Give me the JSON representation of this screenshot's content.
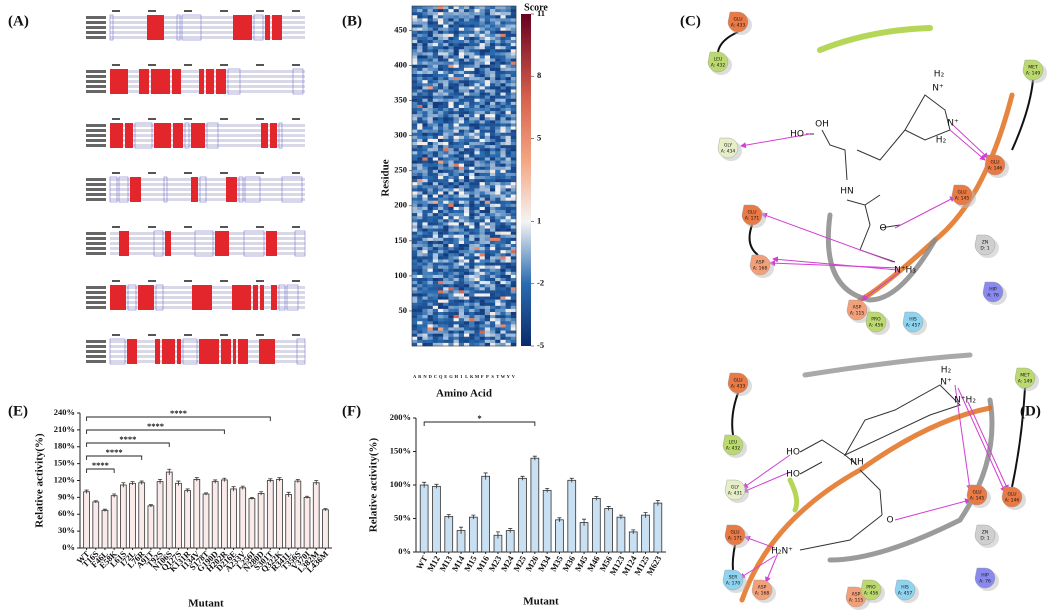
{
  "panel_labels": [
    "(A)",
    "(B)",
    "(C)",
    "(D)",
    "(E)",
    "(F)"
  ],
  "chart_data": [
    {
      "type": "heatmap",
      "colorbar_title": "Score",
      "x_label": "Amino Acid",
      "y_label": "Residue",
      "categories": [
        "A",
        "R",
        "N",
        "D",
        "C",
        "Q",
        "E",
        "G",
        "H",
        "I",
        "L",
        "K",
        "M",
        "F",
        "P",
        "S",
        "T",
        "W",
        "Y",
        "V"
      ],
      "ylim": [
        0,
        485
      ],
      "yticks": [
        50,
        100,
        150,
        200,
        250,
        300,
        350,
        400,
        450
      ],
      "clim": [
        -5,
        11
      ],
      "cticks": [
        -5,
        -2,
        1,
        5,
        8,
        11
      ]
    },
    {
      "type": "bar",
      "x_label": "Mutant",
      "y_label": "Relative activity(%)",
      "color": "#fbeaea",
      "categories": [
        "WT",
        "T16S",
        "F46L",
        "E58K",
        "L61S",
        "I72L",
        "L76R",
        "A91T",
        "T92S",
        "N106S",
        "Q127S",
        "K131R",
        "I134V",
        "S178T",
        "G190D",
        "H202R",
        "D216E",
        "A233V",
        "L256I",
        "N280D",
        "S301T",
        "Q322K",
        "R341L",
        "T356S",
        "V370I",
        "L382M",
        "L436M"
      ],
      "values": [
        100,
        82,
        67,
        93,
        112,
        115,
        116,
        75,
        118,
        135,
        115,
        102,
        122,
        96,
        118,
        121,
        105,
        107,
        88,
        97,
        120,
        122,
        95,
        119,
        90,
        116,
        68
      ],
      "errors": [
        3,
        2,
        2,
        3,
        4,
        3,
        3,
        2,
        4,
        5,
        4,
        3,
        3,
        2,
        3,
        3,
        4,
        3,
        2,
        3,
        3,
        3,
        4,
        3,
        2,
        4,
        2
      ],
      "ylim": [
        0,
        240
      ],
      "yticks": [
        {
          "value": 0,
          "label": "0%"
        },
        {
          "value": 30,
          "label": "30%"
        },
        {
          "value": 60,
          "label": "60%"
        },
        {
          "value": 90,
          "label": "90%"
        },
        {
          "value": 120,
          "label": "120%"
        },
        {
          "value": 150,
          "label": "150%"
        },
        {
          "value": 180,
          "label": "180%"
        },
        {
          "value": 210,
          "label": "210%"
        },
        {
          "value": 240,
          "label": "240%"
        }
      ],
      "significance": [
        {
          "from": 0,
          "to": 3,
          "label": "****"
        },
        {
          "from": 0,
          "to": 6,
          "label": "****"
        },
        {
          "from": 0,
          "to": 9,
          "label": "****"
        },
        {
          "from": 0,
          "to": 15,
          "label": "****"
        },
        {
          "from": 0,
          "to": 20,
          "label": "****"
        }
      ]
    },
    {
      "type": "bar",
      "x_label": "Mutant",
      "y_label": "Relative activity(%)",
      "color": "#c9dff2",
      "categories": [
        "WT",
        "M12",
        "M13",
        "M14",
        "M15",
        "M16",
        "M23",
        "M24",
        "M25",
        "M26",
        "M34",
        "M35",
        "M36",
        "M45",
        "M46",
        "M56",
        "M123",
        "M124",
        "M125",
        "M623"
      ],
      "values": [
        100,
        98,
        53,
        32,
        52,
        113,
        25,
        32,
        110,
        140,
        92,
        48,
        107,
        44,
        80,
        65,
        52,
        30,
        55,
        73
      ],
      "errors": [
        4,
        3,
        3,
        5,
        3,
        5,
        5,
        3,
        3,
        3,
        3,
        3,
        3,
        5,
        3,
        3,
        3,
        3,
        4,
        4
      ],
      "ylim": [
        0,
        200
      ],
      "yticks": [
        {
          "value": 0,
          "label": "0%"
        },
        {
          "value": 50,
          "label": "50%"
        },
        {
          "value": 100,
          "label": "100%"
        },
        {
          "value": 150,
          "label": "150%"
        },
        {
          "value": 200,
          "label": "200%"
        }
      ],
      "significance": [
        {
          "from": 0,
          "to": 9,
          "label": "*"
        }
      ]
    }
  ],
  "diagrams": [
    {
      "nodes": [
        {
          "residue": "GLU",
          "id": "A: 433"
        },
        {
          "residue": "LEU",
          "id": "A: 432"
        },
        {
          "residue": "GLY",
          "id": "A: 434"
        },
        {
          "residue": "MET",
          "id": "A: 149"
        },
        {
          "residue": "GLU",
          "id": "A: 146"
        },
        {
          "residue": "GLU",
          "id": "A: 145"
        },
        {
          "residue": "GLU",
          "id": "A: 171"
        },
        {
          "residue": "ASP",
          "id": "A: 168"
        },
        {
          "residue": "ZN",
          "id": "D: 1"
        },
        {
          "residue": "HIP",
          "id": "A: 76"
        },
        {
          "residue": "ASP",
          "id": "A: 115"
        },
        {
          "residue": "PRO",
          "id": "A: 456"
        },
        {
          "residue": "HIS",
          "id": "A: 457"
        }
      ],
      "ligand_labels": [
        "HO",
        "OH",
        "HN",
        "O",
        "N⁺H₃",
        "H₂",
        "N⁺",
        "N⁺",
        "H₂"
      ]
    },
    {
      "nodes": [
        {
          "residue": "GLU",
          "id": "A: 433"
        },
        {
          "residue": "LEU",
          "id": "A: 432"
        },
        {
          "residue": "GLY",
          "id": "A: 431"
        },
        {
          "residue": "MET",
          "id": "A: 149"
        },
        {
          "residue": "GLU",
          "id": "A: 145"
        },
        {
          "residue": "GLU",
          "id": "A: 146"
        },
        {
          "residue": "GLU",
          "id": "A: 171"
        },
        {
          "residue": "SER",
          "id": "A: 170"
        },
        {
          "residue": "ASP",
          "id": "A: 168"
        },
        {
          "residue": "ZN",
          "id": "D: 1"
        },
        {
          "residue": "HIP",
          "id": "A: 76"
        },
        {
          "residue": "ASP",
          "id": "A: 115"
        },
        {
          "residue": "PRO",
          "id": "A: 456"
        },
        {
          "residue": "HIS",
          "id": "A: 457"
        }
      ],
      "ligand_labels": [
        "HO",
        "HO",
        "NH",
        "O",
        "H₂N⁺",
        "H₂",
        "N⁺",
        "N⁺H₂"
      ]
    }
  ]
}
